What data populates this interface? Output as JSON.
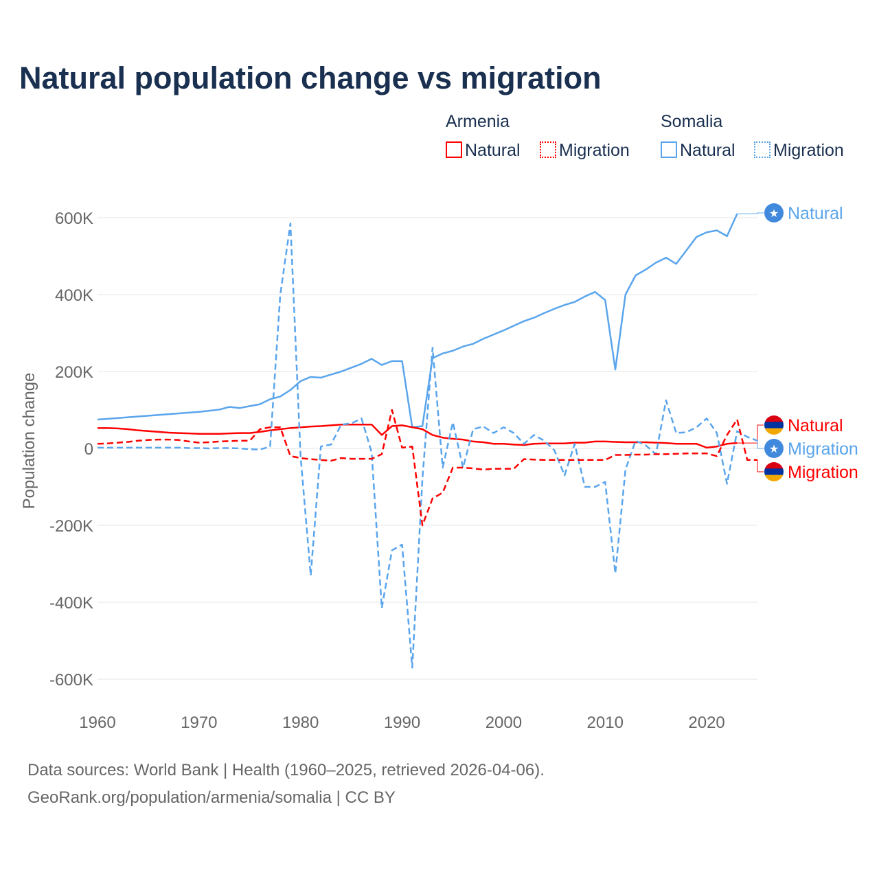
{
  "title": "Natural population change vs migration",
  "legend": {
    "groups": [
      {
        "name": "Armenia",
        "color": "#ff0000",
        "items": [
          "Natural",
          "Migration"
        ]
      },
      {
        "name": "Somalia",
        "color": "#5aa5ec",
        "items": [
          "Natural",
          "Migration"
        ]
      }
    ]
  },
  "source": {
    "line1": "Data sources: World Bank | Health (1960–2025, retrieved 2026-04-06).",
    "line2": "GeoRank.org/population/armenia/somalia | CC BY"
  },
  "chart_data": {
    "type": "line",
    "title": "Natural population change vs migration",
    "xlabel": "",
    "ylabel": "Population change",
    "xlim": [
      1960,
      2025
    ],
    "ylim": [
      -640000,
      640000
    ],
    "xticks": [
      1960,
      1970,
      1980,
      1990,
      2000,
      2010,
      2020
    ],
    "yticks": [
      {
        "v": 600000,
        "l": "600K"
      },
      {
        "v": 400000,
        "l": "400K"
      },
      {
        "v": 200000,
        "l": "200K"
      },
      {
        "v": 0,
        "l": "0"
      },
      {
        "v": -200000,
        "l": "-200K"
      },
      {
        "v": -400000,
        "l": "-400K"
      },
      {
        "v": -600000,
        "l": "-600K"
      }
    ],
    "grid": true,
    "series": [
      {
        "name": "Somalia Natural",
        "label": "Natural",
        "color": "#5aa5ec",
        "dash": false,
        "flag": "somalia",
        "start": 1960,
        "values": [
          75,
          77,
          79,
          81,
          83,
          85,
          87,
          89,
          91,
          93,
          95,
          98,
          101,
          108,
          105,
          110,
          115,
          128,
          135,
          152,
          175,
          186,
          184,
          192,
          200,
          210,
          220,
          233,
          217,
          227,
          227,
          55,
          58,
          235,
          247,
          254,
          265,
          272,
          285,
          296,
          307,
          319,
          331,
          340,
          352,
          363,
          373,
          381,
          395,
          407,
          386,
          205,
          400,
          450,
          465,
          483,
          496,
          480,
          515,
          550,
          562,
          567,
          552,
          610
        ]
      },
      {
        "name": "Armenia Natural",
        "label": "Natural",
        "color": "#ff0000",
        "dash": false,
        "flag": "armenia",
        "start": 1960,
        "values": [
          53,
          53,
          52,
          50,
          47,
          45,
          43,
          41,
          40,
          39,
          38,
          38,
          38,
          39,
          40,
          40,
          43,
          47,
          50,
          53,
          55,
          57,
          58,
          60,
          62,
          62,
          62,
          62,
          35,
          58,
          60,
          55,
          50,
          35,
          28,
          25,
          23,
          18,
          16,
          12,
          12,
          10,
          9,
          12,
          13,
          13,
          13,
          15,
          15,
          18,
          18,
          17,
          16,
          16,
          16,
          15,
          14,
          12,
          12,
          12,
          2,
          5,
          12,
          14
        ]
      },
      {
        "name": "Somalia Migration",
        "label": "Migration",
        "color": "#5aa5ec",
        "dash": true,
        "flag": "somalia",
        "start": 1960,
        "values": [
          2,
          2,
          2,
          2,
          2,
          2,
          2,
          2,
          2,
          1,
          1,
          0,
          1,
          1,
          0,
          -2,
          -3,
          5,
          400,
          585,
          -20,
          -330,
          5,
          10,
          62,
          65,
          78,
          -10,
          -415,
          -265,
          -250,
          -570,
          -80,
          262,
          -50,
          68,
          -50,
          50,
          57,
          40,
          55,
          40,
          12,
          35,
          20,
          -5,
          -70,
          12,
          -100,
          -100,
          -87,
          -325,
          -55,
          20,
          8,
          -15,
          125,
          40,
          42,
          55,
          78,
          40,
          -92,
          45,
          30,
          20
        ]
      },
      {
        "name": "Armenia Migration",
        "label": "Migration",
        "color": "#ff0000",
        "dash": true,
        "flag": "armenia",
        "start": 1960,
        "values": [
          12,
          13,
          15,
          17,
          20,
          22,
          23,
          23,
          22,
          18,
          15,
          16,
          18,
          19,
          20,
          20,
          50,
          55,
          55,
          -20,
          -25,
          -28,
          -30,
          -32,
          -25,
          -27,
          -27,
          -27,
          -15,
          100,
          2,
          5,
          -200,
          -130,
          -115,
          -50,
          -50,
          -52,
          -55,
          -53,
          -53,
          -53,
          -28,
          -29,
          -30,
          -30,
          -30,
          -30,
          -30,
          -30,
          -30,
          -17,
          -17,
          -16,
          -16,
          -15,
          -15,
          -14,
          -13,
          -13,
          -13,
          -20,
          35,
          75,
          -30,
          -30
        ]
      }
    ],
    "value_unit": "thousands"
  }
}
